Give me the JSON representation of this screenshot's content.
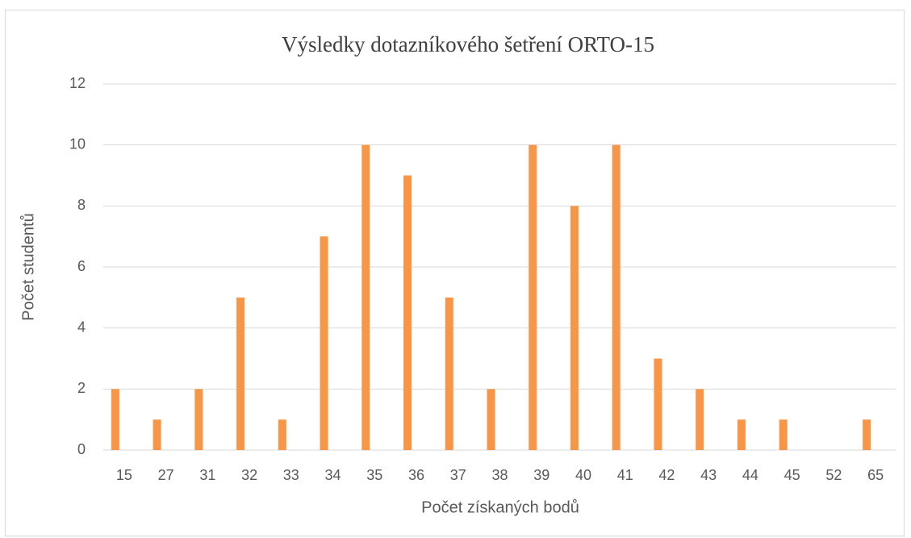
{
  "chart_data": {
    "type": "bar",
    "title": "Výsledky dotazníkového šetření ORTO-15",
    "x_label": "Počet získaných bodů",
    "y_label": "Počet studentů",
    "categories": [
      "15",
      "27",
      "31",
      "32",
      "33",
      "34",
      "35",
      "36",
      "37",
      "38",
      "39",
      "40",
      "41",
      "42",
      "43",
      "44",
      "45",
      "52",
      "65"
    ],
    "values": [
      2,
      1,
      2,
      5,
      1,
      7,
      10,
      9,
      5,
      2,
      10,
      8,
      10,
      3,
      2,
      1,
      1,
      0,
      1
    ],
    "color": "#f79646",
    "ylim": [
      0,
      12
    ],
    "yticks": [
      0,
      2,
      4,
      6,
      8,
      10,
      12
    ],
    "grid": true
  }
}
